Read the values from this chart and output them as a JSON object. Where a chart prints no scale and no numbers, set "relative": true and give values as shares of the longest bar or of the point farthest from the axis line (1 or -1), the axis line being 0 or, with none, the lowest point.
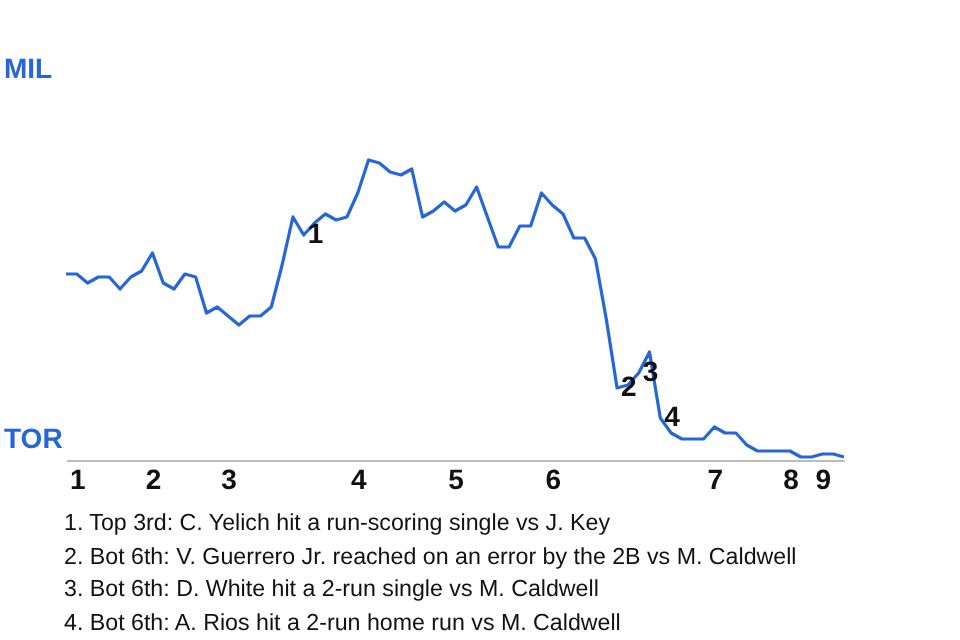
{
  "chart_data": {
    "type": "line",
    "relative": true,
    "categories": [
      null,
      "1",
      null,
      null,
      null,
      null,
      null,
      null,
      "2",
      null,
      null,
      null,
      null,
      null,
      null,
      "3",
      null,
      null,
      null,
      null,
      null,
      null,
      null,
      null,
      null,
      null,
      null,
      "4",
      null,
      null,
      null,
      null,
      null,
      null,
      null,
      null,
      "5",
      null,
      null,
      null,
      null,
      null,
      null,
      null,
      null,
      "6",
      null,
      null,
      null,
      null,
      null,
      null,
      null,
      null,
      null,
      null,
      null,
      null,
      null,
      null,
      "7",
      null,
      null,
      null,
      null,
      null,
      null,
      "8",
      null,
      null,
      "9",
      null,
      null
    ],
    "series": [
      {
        "color": "#2566d8",
        "values": [
          0.62,
          0.62,
          0.59,
          0.61,
          0.61,
          0.57,
          0.61,
          0.63,
          0.69,
          0.59,
          0.57,
          0.62,
          0.61,
          0.49,
          0.51,
          0.48,
          0.45,
          0.48,
          0.48,
          0.51,
          0.65,
          0.81,
          0.75,
          0.79,
          0.82,
          0.8,
          0.81,
          0.89,
          1,
          0.99,
          0.96,
          0.95,
          0.97,
          0.81,
          0.83,
          0.86,
          0.83,
          0.85,
          0.91,
          0.81,
          0.71,
          0.71,
          0.78,
          0.78,
          0.89,
          0.85,
          0.82,
          0.74,
          0.74,
          0.67,
          0.47,
          0.24,
          0.25,
          0.29,
          0.36,
          0.14,
          0.09,
          0.07,
          0.07,
          0.07,
          0.11,
          0.09,
          0.09,
          0.05,
          0.03,
          0.03,
          0.03,
          0.03,
          0.01,
          0.01,
          0.02,
          0.02,
          0.01
        ]
      }
    ],
    "annotations": [
      {
        "text": "1",
        "y": 0.75
      },
      {
        "text": "2",
        "y": 0.24
      },
      {
        "text": "3",
        "y": 0.29
      },
      {
        "text": "4",
        "y": 0.14
      },
      "MIL",
      "TOR",
      "1. Top 3rd: C. Yelich hit a run-scoring single vs J. Key",
      "2. Bot 6th: V. Guerrero Jr. reached on an error by the 2B vs M. Caldwell",
      "3. Bot 6th: D. White hit a 2-run single vs M. Caldwell",
      "4. Bot 6th: A. Rios hit a 2-run home run vs M. Caldwell"
    ]
  }
}
